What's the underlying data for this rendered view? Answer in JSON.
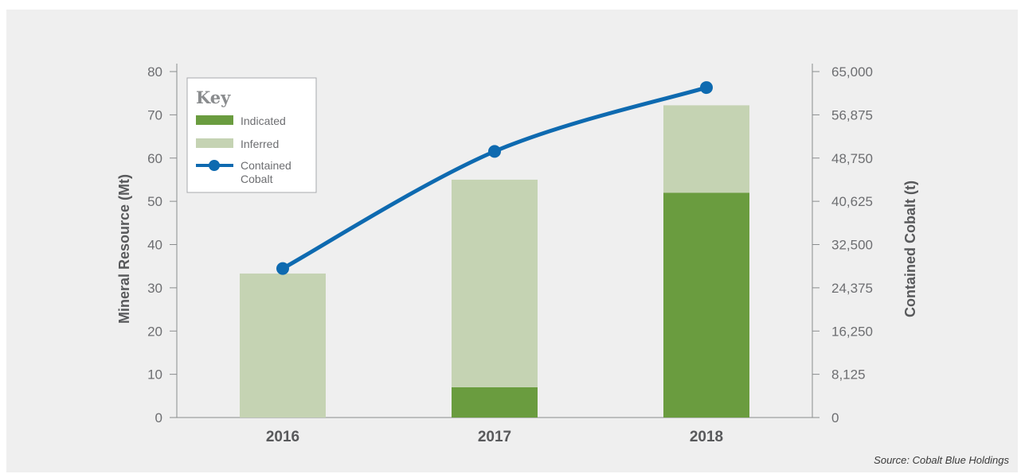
{
  "chart_data": {
    "type": "bar",
    "stacked": true,
    "categories": [
      "2016",
      "2017",
      "2018"
    ],
    "series": [
      {
        "name": "Indicated",
        "values": [
          0,
          7,
          52
        ],
        "color": "#6a9c3f"
      },
      {
        "name": "Inferred",
        "values": [
          33.3,
          48,
          20.2
        ],
        "color": "#c5d3b3"
      }
    ],
    "line_series": {
      "name": "Contained Cobalt",
      "axis": "right",
      "values": [
        28000,
        50000,
        62000
      ],
      "color": "#0e6ab0"
    },
    "ylabel": "Mineral Resource (Mt)",
    "ylim": [
      0,
      80
    ],
    "yticks": [
      0,
      10,
      20,
      30,
      40,
      50,
      60,
      70,
      80
    ],
    "y2label": "Contained Cobalt (t)",
    "y2lim": [
      0,
      65000
    ],
    "y2ticks": [
      "0",
      "8,125",
      "16,250",
      "24,375",
      "32,500",
      "40,625",
      "48,750",
      "56,875",
      "65,000"
    ],
    "legend": {
      "title": "Key",
      "placement": "top-left",
      "entries": [
        "Indicated",
        "Inferred",
        "Contained Cobalt"
      ]
    },
    "source": "Source: Cobalt Blue Holdings"
  }
}
